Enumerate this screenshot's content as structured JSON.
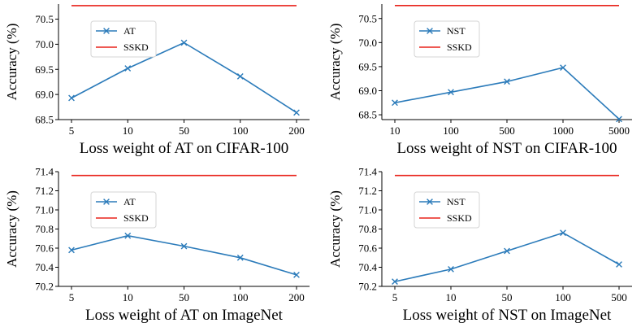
{
  "colors": {
    "series": "#2b7bba",
    "reference": "#e8231b",
    "axis": "#000000"
  },
  "chart_data": [
    {
      "type": "line",
      "title": "",
      "xlabel": "Loss weight of AT on CIFAR-100",
      "ylabel": "Accuracy (%)",
      "categories": [
        "5",
        "10",
        "50",
        "100",
        "200"
      ],
      "ylim": [
        68.5,
        70.8
      ],
      "yticks": [
        "68.5",
        "69.0",
        "69.5",
        "70.0",
        "70.5"
      ],
      "legend_position": "upper-left",
      "series": [
        {
          "name": "AT",
          "style": "line-marker-x",
          "values": [
            68.93,
            69.52,
            70.03,
            69.36,
            68.64
          ]
        },
        {
          "name": "SSKD",
          "style": "line",
          "values": [
            70.77,
            70.77,
            70.77,
            70.77,
            70.77
          ]
        }
      ]
    },
    {
      "type": "line",
      "title": "",
      "xlabel": "Loss weight of NST on CIFAR-100",
      "ylabel": "Accuracy (%)",
      "categories": [
        "10",
        "100",
        "500",
        "1000",
        "5000"
      ],
      "ylim": [
        68.4,
        70.8
      ],
      "yticks": [
        "68.5",
        "69.0",
        "69.5",
        "70.0",
        "70.5"
      ],
      "legend_position": "upper-left",
      "series": [
        {
          "name": "NST",
          "style": "line-marker-x",
          "values": [
            68.75,
            68.97,
            69.19,
            69.48,
            68.41
          ]
        },
        {
          "name": "SSKD",
          "style": "line",
          "values": [
            70.77,
            70.77,
            70.77,
            70.77,
            70.77
          ]
        }
      ]
    },
    {
      "type": "line",
      "title": "",
      "xlabel": "Loss weight of AT on ImageNet",
      "ylabel": "Accuracy (%)",
      "categories": [
        "5",
        "10",
        "50",
        "100",
        "200"
      ],
      "ylim": [
        70.2,
        71.4
      ],
      "yticks": [
        "70.2",
        "70.4",
        "70.6",
        "70.8",
        "71.0",
        "71.2",
        "71.4"
      ],
      "legend_position": "upper-left",
      "series": [
        {
          "name": "AT",
          "style": "line-marker-x",
          "values": [
            70.58,
            70.73,
            70.62,
            70.5,
            70.32
          ]
        },
        {
          "name": "SSKD",
          "style": "line",
          "values": [
            71.36,
            71.36,
            71.36,
            71.36,
            71.36
          ]
        }
      ]
    },
    {
      "type": "line",
      "title": "",
      "xlabel": "Loss weight of NST on ImageNet",
      "ylabel": "Accuracy (%)",
      "categories": [
        "5",
        "10",
        "50",
        "100",
        "500"
      ],
      "ylim": [
        70.2,
        71.4
      ],
      "yticks": [
        "70.2",
        "70.4",
        "70.6",
        "70.8",
        "71.0",
        "71.2",
        "71.4"
      ],
      "legend_position": "upper-left",
      "series": [
        {
          "name": "NST",
          "style": "line-marker-x",
          "values": [
            70.25,
            70.38,
            70.57,
            70.76,
            70.43
          ]
        },
        {
          "name": "SSKD",
          "style": "line",
          "values": [
            71.36,
            71.36,
            71.36,
            71.36,
            71.36
          ]
        }
      ]
    }
  ]
}
